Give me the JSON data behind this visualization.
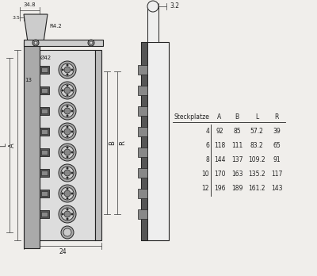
{
  "bg_color": "#f0eeeb",
  "table_header": [
    "Steckplatze",
    "A",
    "B",
    "L",
    "R"
  ],
  "table_rows": [
    [
      "4",
      "92",
      "85",
      "57.2",
      "39"
    ],
    [
      "6",
      "118",
      "111",
      "83.2",
      "65"
    ],
    [
      "8",
      "144",
      "137",
      "109.2",
      "91"
    ],
    [
      "10",
      "170",
      "163",
      "135.2",
      "117"
    ],
    [
      "12",
      "196",
      "189",
      "161.2",
      "143"
    ]
  ],
  "line_color": "#555555",
  "text_color": "#333333",
  "dim_color": "#444444",
  "drawing_bg": "#f0eeeb",
  "connector_color": "#888888",
  "dark_color": "#222222"
}
